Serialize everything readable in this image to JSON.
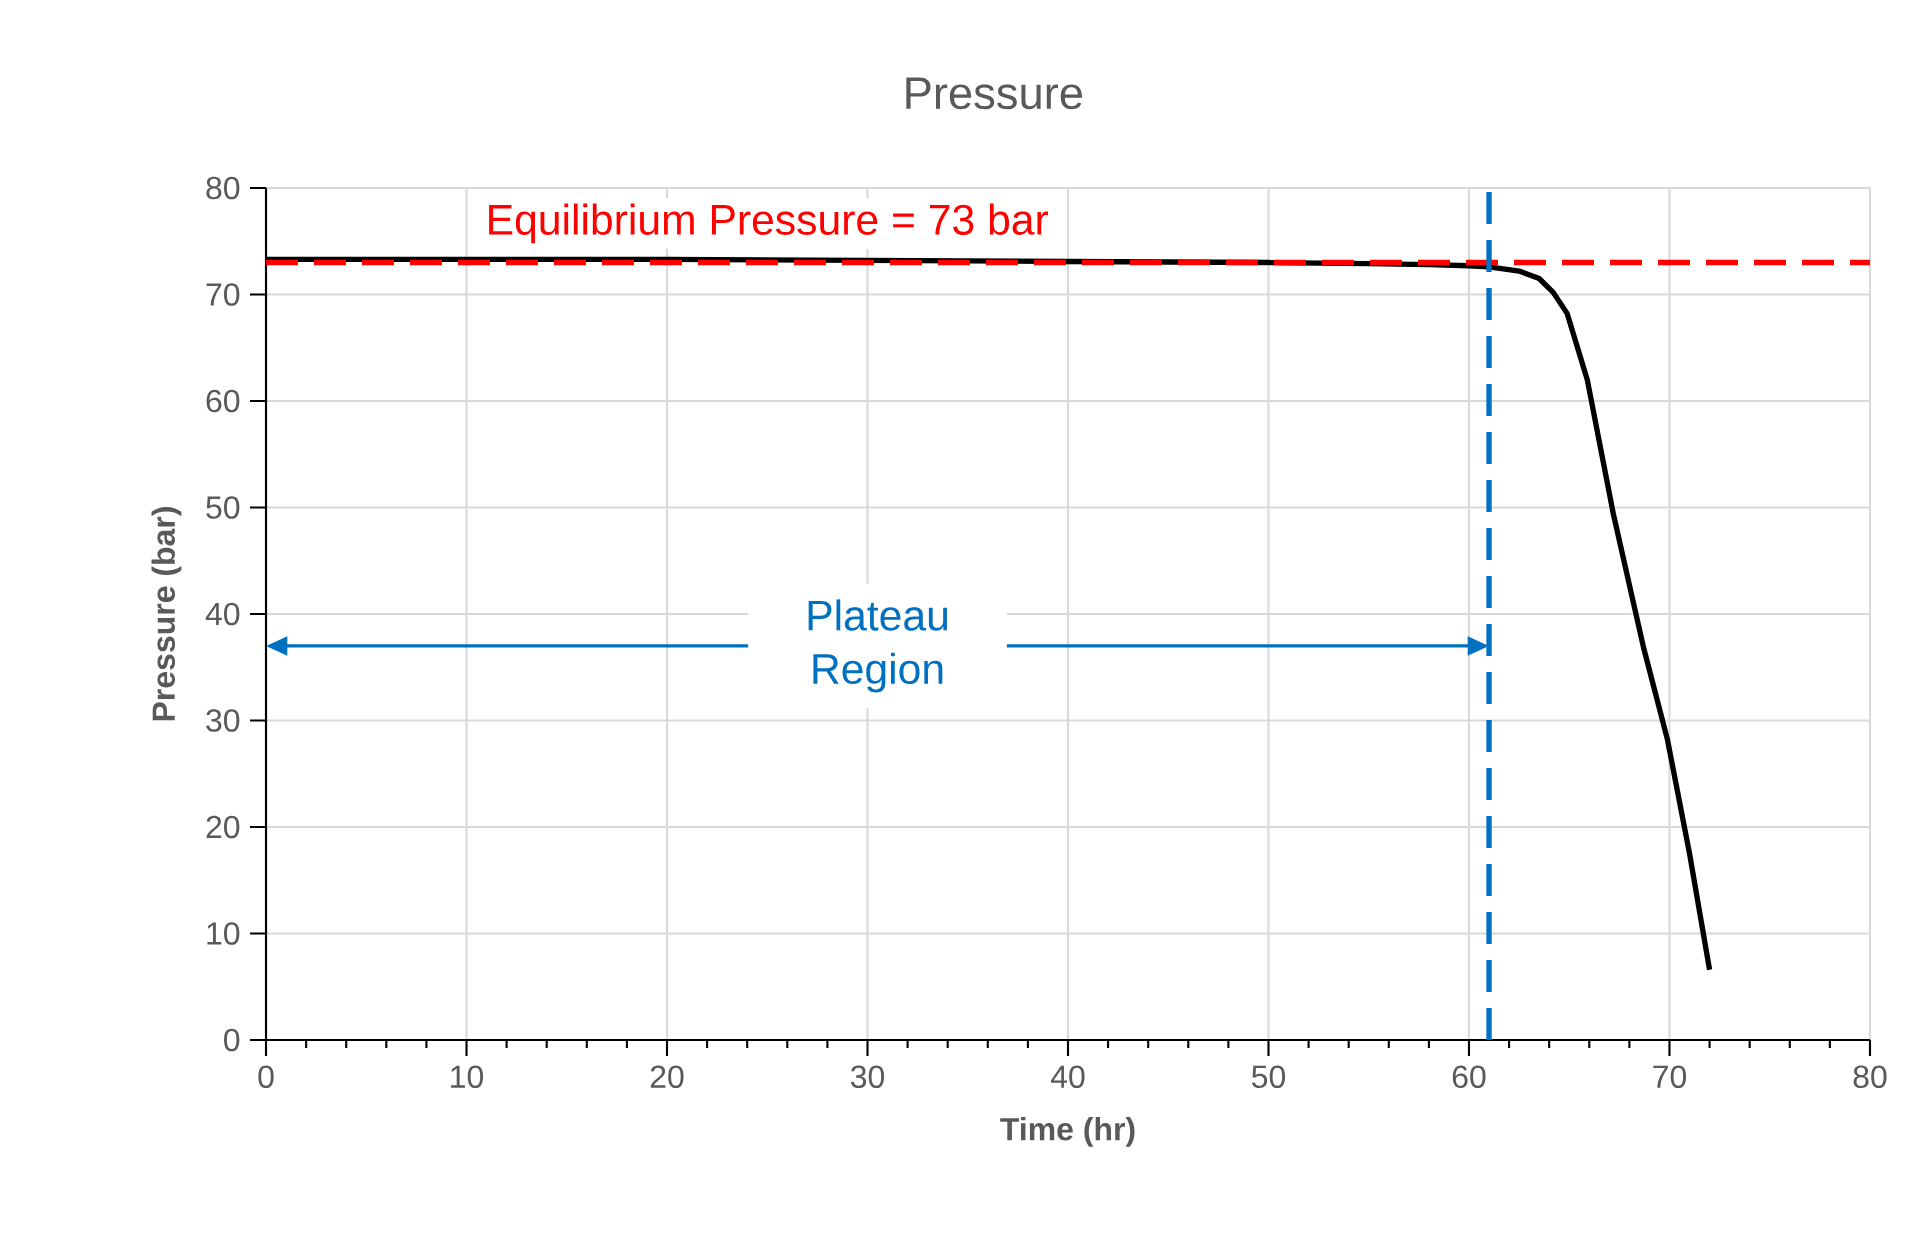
{
  "chart_data": {
    "type": "line",
    "title": "Pressure",
    "xlabel": "Time (hr)",
    "ylabel": "Pressure (bar)",
    "x": [
      0,
      10,
      20,
      30,
      40,
      50,
      55,
      58,
      60,
      61,
      62.5,
      63.5,
      64.2,
      64.9,
      65.9,
      67.2,
      68.7,
      69.9,
      71,
      72
    ],
    "series": [
      {
        "color": "#000000",
        "values": [
          73.3,
          73.3,
          73.3,
          73.2,
          73.1,
          73.0,
          72.9,
          72.8,
          72.7,
          72.6,
          72.2,
          71.5,
          70.2,
          68.2,
          62,
          49.4,
          36.9,
          28.2,
          17.5,
          6.6
        ]
      }
    ],
    "xlim": [
      0,
      80
    ],
    "ylim": [
      0,
      80
    ],
    "xticks": [
      0,
      10,
      20,
      30,
      40,
      50,
      60,
      70,
      80
    ],
    "yticks": [
      0,
      10,
      20,
      30,
      40,
      50,
      60,
      70,
      80
    ],
    "grid": true,
    "marker": "none",
    "line_style": "solid",
    "ref_lines": [
      {
        "axis": "y",
        "value": 73,
        "label": "Equilibrium Pressure = 73 bar",
        "color": "#ff0000",
        "line_style": "dashed"
      },
      {
        "axis": "x",
        "value": 61,
        "color": "#0070c0",
        "line_style": "dashed"
      }
    ],
    "annotations": [
      "Plateau Region"
    ]
  }
}
